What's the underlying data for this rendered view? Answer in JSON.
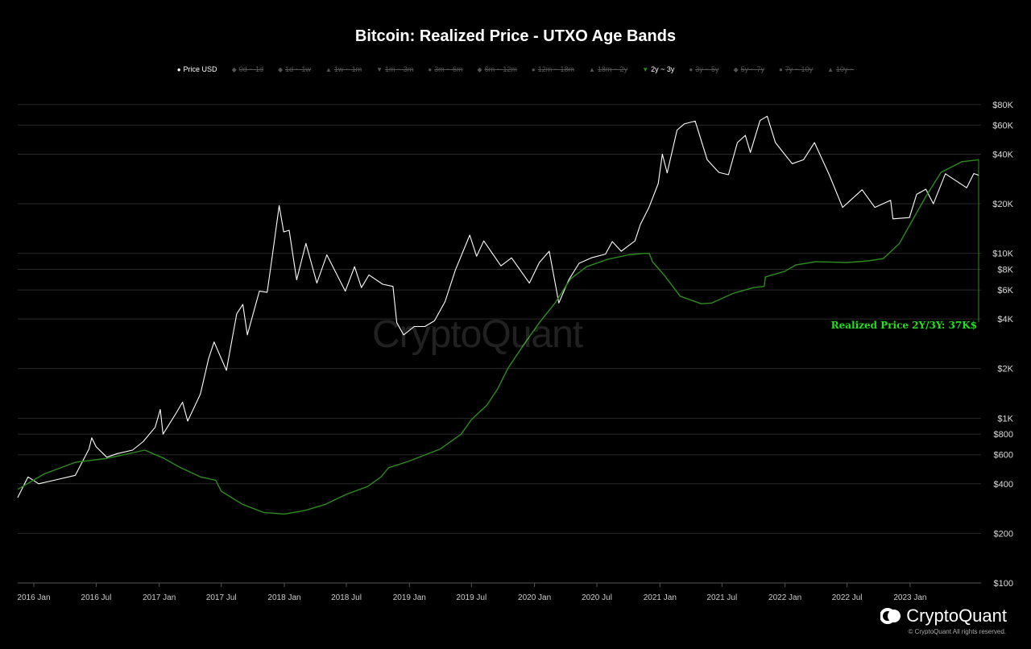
{
  "chart_data": {
    "type": "line",
    "title": "Bitcoin: Realized Price - UTXO Age Bands",
    "y_scale": "log",
    "ylim": [
      100,
      100000
    ],
    "xlim": [
      "2015-11-15",
      "2023-07-20"
    ],
    "y_ticks": [
      {
        "v": 80000,
        "label": "$80K"
      },
      {
        "v": 60000,
        "label": "$60K"
      },
      {
        "v": 40000,
        "label": "$40K"
      },
      {
        "v": 20000,
        "label": "$20K"
      },
      {
        "v": 10000,
        "label": "$10K"
      },
      {
        "v": 8000,
        "label": "$8K"
      },
      {
        "v": 6000,
        "label": "$6K"
      },
      {
        "v": 4000,
        "label": "$4K"
      },
      {
        "v": 2000,
        "label": "$2K"
      },
      {
        "v": 1000,
        "label": "$1K"
      },
      {
        "v": 800,
        "label": "$800"
      },
      {
        "v": 600,
        "label": "$600"
      },
      {
        "v": 400,
        "label": "$400"
      },
      {
        "v": 200,
        "label": "$200"
      },
      {
        "v": 100,
        "label": "$100"
      }
    ],
    "x_ticks": [
      {
        "date": "2016-01-01",
        "label": "2016 Jan"
      },
      {
        "date": "2016-07-01",
        "label": "2016 Jul"
      },
      {
        "date": "2017-01-01",
        "label": "2017 Jan"
      },
      {
        "date": "2017-07-01",
        "label": "2017 Jul"
      },
      {
        "date": "2018-01-01",
        "label": "2018 Jan"
      },
      {
        "date": "2018-07-01",
        "label": "2018 Jul"
      },
      {
        "date": "2019-01-01",
        "label": "2019 Jan"
      },
      {
        "date": "2019-07-01",
        "label": "2019 Jul"
      },
      {
        "date": "2020-01-01",
        "label": "2020 Jan"
      },
      {
        "date": "2020-07-01",
        "label": "2020 Jul"
      },
      {
        "date": "2021-01-01",
        "label": "2021 Jan"
      },
      {
        "date": "2021-07-01",
        "label": "2021 Jul"
      },
      {
        "date": "2022-01-01",
        "label": "2022 Jan"
      },
      {
        "date": "2022-07-01",
        "label": "2022 Jul"
      },
      {
        "date": "2023-01-01",
        "label": "2023 Jan"
      }
    ],
    "legend": [
      {
        "name": "Price USD",
        "marker": "●",
        "active": true
      },
      {
        "name": "0d ~ 1d",
        "marker": "◆",
        "active": false
      },
      {
        "name": "1d ~ 1w",
        "marker": "◆",
        "active": false
      },
      {
        "name": "1w ~ 1m",
        "marker": "▲",
        "active": false
      },
      {
        "name": "1m ~ 3m",
        "marker": "▼",
        "active": false
      },
      {
        "name": "3m ~ 6m",
        "marker": "●",
        "active": false
      },
      {
        "name": "6m ~ 12m",
        "marker": "◆",
        "active": false
      },
      {
        "name": "12m ~ 18m",
        "marker": "●",
        "active": false
      },
      {
        "name": "18m ~ 2y",
        "marker": "▲",
        "active": false
      },
      {
        "name": "2y ~ 3y",
        "marker": "▼",
        "active": true,
        "color": "#2e8b1e"
      },
      {
        "name": "3y ~ 5y",
        "marker": "●",
        "active": false
      },
      {
        "name": "5y ~ 7y",
        "marker": "◆",
        "active": false
      },
      {
        "name": "7y ~ 10y",
        "marker": "●",
        "active": false
      },
      {
        "name": "10y ~",
        "marker": "▲",
        "active": false
      }
    ],
    "series": [
      {
        "name": "Price USD",
        "color": "#ffffff",
        "points": [
          [
            "2015-11-15",
            330
          ],
          [
            "2015-12-15",
            440
          ],
          [
            "2016-01-15",
            400
          ],
          [
            "2016-03-01",
            420
          ],
          [
            "2016-05-01",
            450
          ],
          [
            "2016-06-10",
            650
          ],
          [
            "2016-06-18",
            760
          ],
          [
            "2016-07-01",
            670
          ],
          [
            "2016-08-01",
            580
          ],
          [
            "2016-09-01",
            610
          ],
          [
            "2016-10-15",
            640
          ],
          [
            "2016-11-15",
            720
          ],
          [
            "2016-12-20",
            880
          ],
          [
            "2017-01-04",
            1130
          ],
          [
            "2017-01-12",
            800
          ],
          [
            "2017-02-20",
            1080
          ],
          [
            "2017-03-10",
            1250
          ],
          [
            "2017-03-25",
            960
          ],
          [
            "2017-05-01",
            1400
          ],
          [
            "2017-05-25",
            2300
          ],
          [
            "2017-06-10",
            2900
          ],
          [
            "2017-07-16",
            1950
          ],
          [
            "2017-08-15",
            4300
          ],
          [
            "2017-09-02",
            4900
          ],
          [
            "2017-09-15",
            3200
          ],
          [
            "2017-10-20",
            5900
          ],
          [
            "2017-11-12",
            5800
          ],
          [
            "2017-11-28",
            10000
          ],
          [
            "2017-12-17",
            19500
          ],
          [
            "2017-12-30",
            13500
          ],
          [
            "2018-01-15",
            13800
          ],
          [
            "2018-02-06",
            6900
          ],
          [
            "2018-03-05",
            11500
          ],
          [
            "2018-04-06",
            6600
          ],
          [
            "2018-05-05",
            9800
          ],
          [
            "2018-06-28",
            5900
          ],
          [
            "2018-07-25",
            8300
          ],
          [
            "2018-08-14",
            6200
          ],
          [
            "2018-09-05",
            7400
          ],
          [
            "2018-10-15",
            6500
          ],
          [
            "2018-11-14",
            6300
          ],
          [
            "2018-11-25",
            3800
          ],
          [
            "2018-12-15",
            3200
          ],
          [
            "2019-01-15",
            3600
          ],
          [
            "2019-02-15",
            3600
          ],
          [
            "2019-03-15",
            3900
          ],
          [
            "2019-04-15",
            5100
          ],
          [
            "2019-05-15",
            7900
          ],
          [
            "2019-06-26",
            12900
          ],
          [
            "2019-07-16",
            9600
          ],
          [
            "2019-08-06",
            11900
          ],
          [
            "2019-09-25",
            8400
          ],
          [
            "2019-10-26",
            9400
          ],
          [
            "2019-12-17",
            6600
          ],
          [
            "2020-01-15",
            8800
          ],
          [
            "2020-02-13",
            10300
          ],
          [
            "2020-03-12",
            5000
          ],
          [
            "2020-04-10",
            6900
          ],
          [
            "2020-05-10",
            8700
          ],
          [
            "2020-06-15",
            9400
          ],
          [
            "2020-07-26",
            9900
          ],
          [
            "2020-08-15",
            11800
          ],
          [
            "2020-09-10",
            10300
          ],
          [
            "2020-10-20",
            11900
          ],
          [
            "2020-11-05",
            15000
          ],
          [
            "2020-11-30",
            19000
          ],
          [
            "2020-12-27",
            26500
          ],
          [
            "2021-01-08",
            40000
          ],
          [
            "2021-01-22",
            30800
          ],
          [
            "2021-02-20",
            56000
          ],
          [
            "2021-03-13",
            61000
          ],
          [
            "2021-04-14",
            63500
          ],
          [
            "2021-05-19",
            37000
          ],
          [
            "2021-06-22",
            31000
          ],
          [
            "2021-07-20",
            30000
          ],
          [
            "2021-08-15",
            47000
          ],
          [
            "2021-09-07",
            52000
          ],
          [
            "2021-09-22",
            41000
          ],
          [
            "2021-10-20",
            64000
          ],
          [
            "2021-11-10",
            68000
          ],
          [
            "2021-12-04",
            47000
          ],
          [
            "2022-01-22",
            35000
          ],
          [
            "2022-02-24",
            37000
          ],
          [
            "2022-03-28",
            47000
          ],
          [
            "2022-05-10",
            30000
          ],
          [
            "2022-06-18",
            19000
          ],
          [
            "2022-08-14",
            24300
          ],
          [
            "2022-09-20",
            19000
          ],
          [
            "2022-11-05",
            21000
          ],
          [
            "2022-11-12",
            16200
          ],
          [
            "2022-12-30",
            16500
          ],
          [
            "2023-01-20",
            22800
          ],
          [
            "2023-02-16",
            24500
          ],
          [
            "2023-03-10",
            20000
          ],
          [
            "2023-04-14",
            30400
          ],
          [
            "2023-06-15",
            25000
          ],
          [
            "2023-07-06",
            30500
          ],
          [
            "2023-07-20",
            29800
          ]
        ]
      },
      {
        "name": "2y ~ 3y",
        "color": "#2e8b1e",
        "points": [
          [
            "2015-11-15",
            370
          ],
          [
            "2016-02-01",
            460
          ],
          [
            "2016-05-01",
            540
          ],
          [
            "2016-08-01",
            570
          ],
          [
            "2016-11-20",
            640
          ],
          [
            "2017-01-15",
            570
          ],
          [
            "2017-03-01",
            505
          ],
          [
            "2017-05-01",
            440
          ],
          [
            "2017-06-15",
            420
          ],
          [
            "2017-07-01",
            360
          ],
          [
            "2017-09-01",
            300
          ],
          [
            "2017-11-01",
            268
          ],
          [
            "2018-01-01",
            262
          ],
          [
            "2018-03-01",
            275
          ],
          [
            "2018-05-01",
            300
          ],
          [
            "2018-07-01",
            345
          ],
          [
            "2018-09-01",
            385
          ],
          [
            "2018-10-10",
            440
          ],
          [
            "2018-11-01",
            500
          ],
          [
            "2019-01-01",
            550
          ],
          [
            "2019-04-01",
            650
          ],
          [
            "2019-06-01",
            800
          ],
          [
            "2019-07-01",
            980
          ],
          [
            "2019-08-15",
            1200
          ],
          [
            "2019-09-15",
            1500
          ],
          [
            "2019-10-15",
            2000
          ],
          [
            "2019-12-01",
            2800
          ],
          [
            "2020-01-15",
            3800
          ],
          [
            "2020-03-01",
            5000
          ],
          [
            "2020-04-15",
            7000
          ],
          [
            "2020-06-01",
            8300
          ],
          [
            "2020-08-01",
            9200
          ],
          [
            "2020-10-01",
            9800
          ],
          [
            "2020-11-15",
            10000
          ],
          [
            "2020-12-01",
            10000
          ],
          [
            "2020-12-10",
            8900
          ],
          [
            "2021-01-15",
            7300
          ],
          [
            "2021-03-01",
            5500
          ],
          [
            "2021-05-01",
            4950
          ],
          [
            "2021-06-01",
            5000
          ],
          [
            "2021-08-01",
            5700
          ],
          [
            "2021-10-01",
            6200
          ],
          [
            "2021-11-01",
            6300
          ],
          [
            "2021-11-05",
            7200
          ],
          [
            "2022-01-01",
            7800
          ],
          [
            "2022-02-01",
            8500
          ],
          [
            "2022-04-01",
            8900
          ],
          [
            "2022-07-01",
            8800
          ],
          [
            "2022-09-01",
            9000
          ],
          [
            "2022-10-15",
            9300
          ],
          [
            "2022-12-01",
            11500
          ],
          [
            "2023-01-01",
            15000
          ],
          [
            "2023-02-15",
            22000
          ],
          [
            "2023-04-01",
            31000
          ],
          [
            "2023-06-01",
            36000
          ],
          [
            "2023-07-20",
            37000
          ]
        ]
      }
    ],
    "annotation": {
      "text": "Realized Price 2Y/3Y: 37K$",
      "color": "#22e01a"
    }
  },
  "watermark": "CryptoQuant",
  "brand": {
    "name": "CryptoQuant",
    "copyright": "© CryptoQuant All rights reserved."
  }
}
